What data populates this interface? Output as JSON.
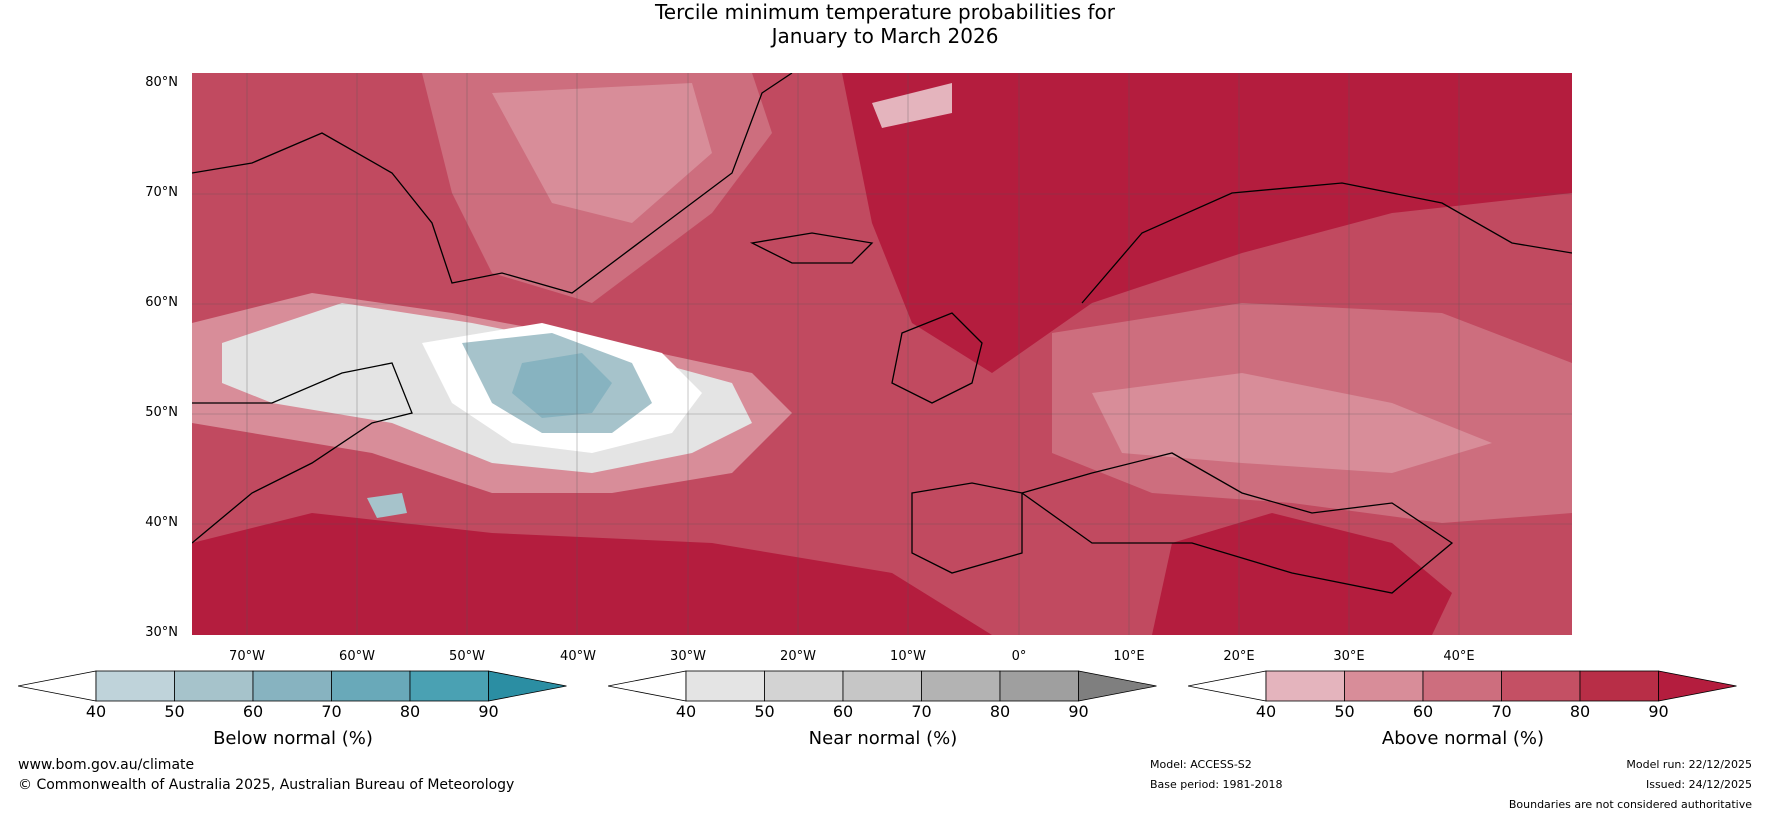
{
  "title_line1": "Tercile minimum temperature probabilities for",
  "title_line2": "January to March 2026",
  "lat_labels": [
    "80°N",
    "70°N",
    "60°N",
    "50°N",
    "40°N",
    "30°N"
  ],
  "lon_labels": [
    "70°W",
    "60°W",
    "50°W",
    "40°W",
    "30°W",
    "20°W",
    "10°W",
    "0°",
    "10°E",
    "20°E",
    "30°E",
    "40°E"
  ],
  "legends": {
    "below": {
      "title": "Below normal (%)",
      "ticks": [
        "40",
        "50",
        "60",
        "70",
        "80",
        "90"
      ],
      "colors": [
        "#ffffff",
        "#bfd3da",
        "#a6c3cb",
        "#87b3c0",
        "#69a9b9",
        "#4aa1b3",
        "#2b8ea3"
      ]
    },
    "near": {
      "title": "Near normal (%)",
      "ticks": [
        "40",
        "50",
        "60",
        "70",
        "80",
        "90"
      ],
      "colors": [
        "#ffffff",
        "#e4e4e4",
        "#d3d3d3",
        "#c6c6c6",
        "#b3b3b3",
        "#9f9f9f",
        "#7f7f7f"
      ]
    },
    "above": {
      "title": "Above normal (%)",
      "ticks": [
        "40",
        "50",
        "60",
        "70",
        "80",
        "90"
      ],
      "colors": [
        "#ffffff",
        "#e4b4bd",
        "#d88d99",
        "#cd6e7e",
        "#c45064",
        "#b82e47",
        "#b41d3e"
      ]
    }
  },
  "footer": {
    "website": "www.bom.gov.au/climate",
    "copyright": "© Commonwealth of Australia 2025, Australian Bureau of Meteorology",
    "model": "Model: ACCESS-S2",
    "base_period": "Base period: 1981-2018",
    "model_run": "Model run: 22/12/2025",
    "issued": "Issued: 24/12/2025",
    "disclaimer": "Boundaries are not considered authoritative"
  }
}
